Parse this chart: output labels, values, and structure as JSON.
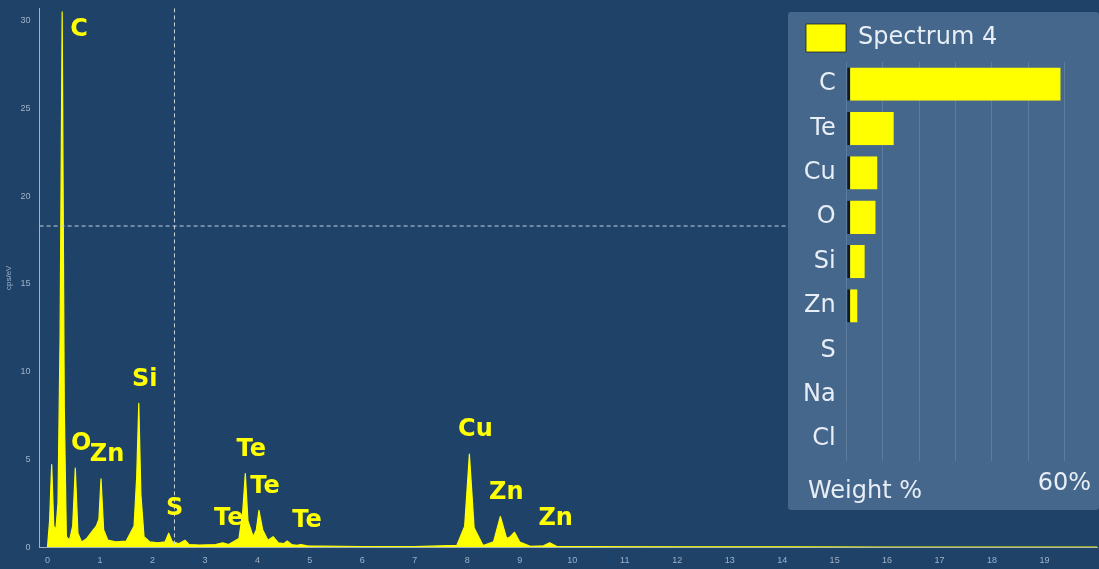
{
  "chart_data": [
    {
      "type": "area",
      "ylabel": "cps/eV",
      "xlim": [
        -0.15,
        20
      ],
      "xticks": [
        0,
        1,
        2,
        3,
        4,
        5,
        6,
        7,
        8,
        9,
        10,
        11,
        12,
        13,
        14,
        15,
        16,
        17,
        18,
        19
      ],
      "ylim": [
        0,
        30.7
      ],
      "yticks": [
        0,
        5,
        10,
        15,
        20,
        25,
        30
      ],
      "series": [
        {
          "color": "#ffff00",
          "x": [
            0,
            0.04,
            0.08,
            0.12,
            0.16,
            0.2,
            0.24,
            0.28,
            0.32,
            0.36,
            0.42,
            0.48,
            0.53,
            0.58,
            0.65,
            0.75,
            0.85,
            0.93,
            0.98,
            1.02,
            1.07,
            1.15,
            1.3,
            1.5,
            1.65,
            1.7,
            1.74,
            1.78,
            1.84,
            1.95,
            2.1,
            2.24,
            2.31,
            2.38,
            2.5,
            2.62,
            2.7,
            2.9,
            3.2,
            3.34,
            3.45,
            3.65,
            3.72,
            3.77,
            3.82,
            3.92,
            3.98,
            4.03,
            4.1,
            4.2,
            4.3,
            4.4,
            4.5,
            4.57,
            4.65,
            4.75,
            4.83,
            4.95,
            5.2,
            6,
            7,
            7.8,
            7.95,
            8.04,
            8.13,
            8.3,
            8.5,
            8.63,
            8.75,
            8.82,
            8.9,
            9.0,
            9.2,
            9.45,
            9.57,
            9.7,
            10,
            12,
            14,
            16,
            18,
            20
          ],
          "values": [
            0,
            1.5,
            4.7,
            1.2,
            1.0,
            2.5,
            12,
            30.5,
            8,
            0.6,
            0.4,
            1.2,
            4.5,
            0.8,
            0.3,
            0.5,
            0.9,
            1.2,
            1.6,
            3.9,
            1.0,
            0.4,
            0.3,
            0.35,
            1.2,
            4,
            8.2,
            3,
            0.6,
            0.3,
            0.25,
            0.3,
            0.8,
            0.3,
            0.2,
            0.4,
            0.15,
            0.12,
            0.15,
            0.25,
            0.15,
            0.5,
            2,
            4.2,
            1.5,
            0.6,
            1,
            2.1,
            1,
            0.4,
            0.6,
            0.25,
            0.2,
            0.35,
            0.15,
            0.1,
            0.15,
            0.08,
            0.06,
            0.04,
            0.03,
            0.1,
            1.2,
            5.3,
            1.1,
            0.1,
            0.3,
            1.75,
            0.5,
            0.6,
            0.85,
            0.3,
            0.05,
            0.08,
            0.25,
            0.05,
            0.03,
            0.02,
            0.02,
            0.01,
            0.01,
            0.01
          ]
        }
      ],
      "ref_lines": [
        {
          "axis": "x",
          "value": 2.42,
          "color": "#c8d2dc",
          "line_style": "dashed"
        },
        {
          "axis": "y",
          "value": 18.3,
          "color": "#c8d2dc",
          "line_style": "dashed"
        }
      ],
      "annotations": [
        {
          "text": "C",
          "x": 0.28,
          "y": 30.5
        },
        {
          "text": "O",
          "x": 0.53,
          "y": 4.5
        },
        {
          "text": "Zn",
          "x": 1.02,
          "y": 3.9
        },
        {
          "text": "Si",
          "x": 1.74,
          "y": 8.2
        },
        {
          "text": "S",
          "x": 2.31,
          "y": 0.8
        },
        {
          "text": "Te",
          "x": 3.34,
          "y": 0.25
        },
        {
          "text": "Te",
          "x": 3.77,
          "y": 4.2
        },
        {
          "text": "Te",
          "x": 4.03,
          "y": 2.1
        },
        {
          "text": "Te",
          "x": 4.83,
          "y": 0.15
        },
        {
          "text": "Cu",
          "x": 8.04,
          "y": 5.3
        },
        {
          "text": "Zn",
          "x": 8.63,
          "y": 1.75
        },
        {
          "text": "Zn",
          "x": 9.57,
          "y": 0.25
        }
      ]
    },
    {
      "type": "bar",
      "orientation": "horizontal",
      "legend": "top",
      "xlabel": "Weight %",
      "grid": "x",
      "xlim": [
        0,
        60
      ],
      "xticks": [
        {
          "value": 0,
          "label": null
        },
        {
          "value": 10,
          "label": null
        },
        {
          "value": 20,
          "label": null
        },
        {
          "value": 30,
          "label": null
        },
        {
          "value": 40,
          "label": null
        },
        {
          "value": 50,
          "label": null
        },
        {
          "value": 60,
          "label": "60%"
        }
      ],
      "categories": [
        "C",
        "Te",
        "Cu",
        "O",
        "Si",
        "Zn",
        "S",
        "Na",
        "Cl"
      ],
      "series": [
        {
          "name": "Spectrum 4",
          "color": "#ffff00",
          "values": [
            59,
            13,
            8.5,
            8,
            5,
            3,
            0,
            0,
            0
          ]
        }
      ]
    }
  ]
}
